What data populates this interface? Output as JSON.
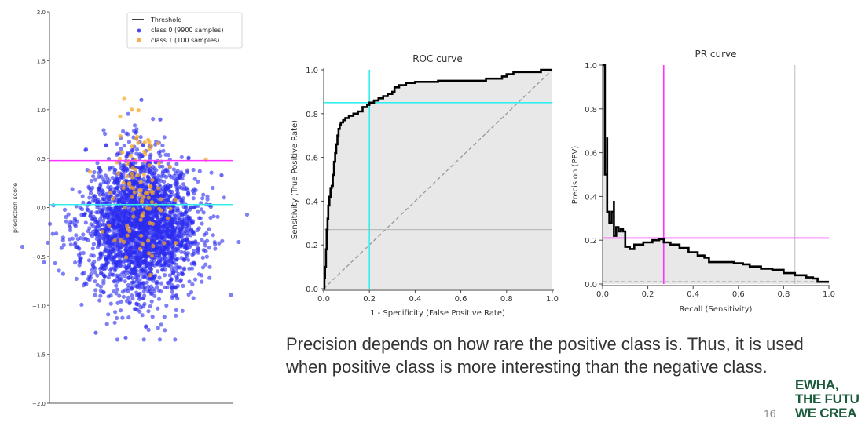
{
  "slide": {
    "caption_lines": [
      "Precision depends on how rare the positive class is. Thus, it is used",
      "when positive class is more interesting than the negative class."
    ],
    "logo_lines": [
      "EWHA,",
      "THE FUTU",
      "WE CREA"
    ],
    "page_number": "16",
    "colors": {
      "brand_green": "#1b5a3a"
    }
  },
  "chart_data": [
    {
      "id": "scatter",
      "type": "scatter",
      "title": "",
      "xlabel": "",
      "ylabel": "prediction score",
      "ylim": [
        -2.0,
        2.0
      ],
      "yticks": [
        "2.0",
        "1.5",
        "1.0",
        "0.5",
        "0.0",
        "-0.5",
        "-1.0",
        "-1.5",
        "-2.0"
      ],
      "ytick_values": [
        2.0,
        1.5,
        1.0,
        0.5,
        0.0,
        -0.5,
        -1.0,
        -1.5,
        -2.0
      ],
      "legend": {
        "placement": "top-right",
        "entries": [
          {
            "label": "Threshold",
            "kind": "line",
            "color": "#000000"
          },
          {
            "label": "class 0 (9900 samples)",
            "kind": "marker",
            "color": "#3333ee"
          },
          {
            "label": "class 1 (100 samples)",
            "kind": "marker",
            "color": "#f5a623"
          }
        ]
      },
      "series": [
        {
          "name": "class 0",
          "samples": 9900,
          "mean": -0.2,
          "std": 0.35,
          "color": "#2b2bf0"
        },
        {
          "name": "class 1",
          "samples": 100,
          "mean": 0.15,
          "std": 0.35,
          "color": "#f5a623"
        }
      ],
      "threshold_lines": [
        {
          "y": 0.48,
          "color": "#ff33ff"
        },
        {
          "y": 0.03,
          "color": "#33eeee"
        }
      ],
      "highlighted_outliers": [
        {
          "class": "class 1",
          "y": 1.11
        },
        {
          "class": "class 0",
          "y": 1.1
        },
        {
          "class": "class 1",
          "y": 0.93
        },
        {
          "class": "class 0",
          "y": 0.9
        },
        {
          "class": "class 1",
          "y": 0.49
        },
        {
          "class": "class 0",
          "y": 0.33
        },
        {
          "class": "class 0",
          "y": -1.28
        },
        {
          "class": "class 0",
          "y": -1.33
        }
      ]
    },
    {
      "id": "roc",
      "type": "line",
      "title": "ROC curve",
      "xlabel": "1 - Specificity (False Positive Rate)",
      "ylabel": "Sensitivity (True Positive Rate)",
      "xlim": [
        0.0,
        1.0
      ],
      "ylim": [
        0.0,
        1.0
      ],
      "xticks": [
        "0.0",
        "0.2",
        "0.4",
        "0.6",
        "0.8",
        "1.0"
      ],
      "yticks": [
        "0.0",
        "0.2",
        "0.4",
        "0.6",
        "0.8",
        "1.0"
      ],
      "tick_values": [
        0.0,
        0.2,
        0.4,
        0.6,
        0.8,
        1.0
      ],
      "series": [
        {
          "name": "ROC",
          "color": "#000000",
          "x": [
            0.0,
            0.003,
            0.006,
            0.01,
            0.013,
            0.017,
            0.02,
            0.025,
            0.03,
            0.035,
            0.04,
            0.045,
            0.05,
            0.055,
            0.06,
            0.065,
            0.07,
            0.075,
            0.085,
            0.095,
            0.11,
            0.13,
            0.15,
            0.17,
            0.19,
            0.2,
            0.22,
            0.24,
            0.26,
            0.28,
            0.3,
            0.31,
            0.33,
            0.36,
            0.4,
            0.5,
            0.6,
            0.7,
            0.71,
            0.78,
            0.8,
            0.83,
            0.9,
            0.95,
            1.0
          ],
          "y": [
            0.0,
            0.05,
            0.1,
            0.18,
            0.27,
            0.32,
            0.38,
            0.42,
            0.46,
            0.47,
            0.52,
            0.58,
            0.62,
            0.66,
            0.7,
            0.73,
            0.75,
            0.76,
            0.77,
            0.78,
            0.79,
            0.8,
            0.81,
            0.83,
            0.84,
            0.85,
            0.86,
            0.87,
            0.88,
            0.89,
            0.9,
            0.92,
            0.93,
            0.94,
            0.945,
            0.95,
            0.95,
            0.95,
            0.96,
            0.97,
            0.98,
            0.99,
            0.99,
            1.0,
            1.0
          ]
        },
        {
          "name": "chance",
          "style": "dashed",
          "color": "#999999",
          "x": [
            0.0,
            1.0
          ],
          "y": [
            0.0,
            1.0
          ]
        }
      ],
      "reference_lines": [
        {
          "orientation": "vertical",
          "value": 0.2,
          "color": "#33eeee"
        },
        {
          "orientation": "horizontal",
          "value": 0.85,
          "color": "#33eeee"
        },
        {
          "orientation": "horizontal",
          "value": 0.27,
          "color": "#aaaaaa"
        }
      ],
      "fill_color": "#e8e8e8"
    },
    {
      "id": "pr",
      "type": "line",
      "title": "PR curve",
      "xlabel": "Recall (Sensitivity)",
      "ylabel": "Precision (PPV)",
      "xlim": [
        0.0,
        1.0
      ],
      "ylim": [
        0.0,
        1.0
      ],
      "xticks": [
        "0.0",
        "0.2",
        "0.4",
        "0.6",
        "0.8",
        "1.0"
      ],
      "yticks": [
        "0.0",
        "0.2",
        "0.4",
        "0.6",
        "0.8",
        "1.0"
      ],
      "tick_values": [
        0.0,
        0.2,
        0.4,
        0.6,
        0.8,
        1.0
      ],
      "series": [
        {
          "name": "PR",
          "color": "#000000",
          "x": [
            0.0,
            0.01,
            0.01,
            0.02,
            0.02,
            0.03,
            0.03,
            0.04,
            0.05,
            0.05,
            0.06,
            0.07,
            0.08,
            0.09,
            0.1,
            0.1,
            0.12,
            0.14,
            0.18,
            0.22,
            0.25,
            0.27,
            0.27,
            0.3,
            0.34,
            0.38,
            0.42,
            0.45,
            0.47,
            0.52,
            0.58,
            0.62,
            0.65,
            0.7,
            0.75,
            0.8,
            0.85,
            0.9,
            0.93,
            0.95,
            1.0
          ],
          "y": [
            1.0,
            1.0,
            0.5,
            0.67,
            0.33,
            0.3,
            0.28,
            0.33,
            0.38,
            0.22,
            0.26,
            0.24,
            0.25,
            0.24,
            0.22,
            0.17,
            0.16,
            0.18,
            0.19,
            0.2,
            0.205,
            0.21,
            0.19,
            0.18,
            0.165,
            0.145,
            0.13,
            0.12,
            0.1,
            0.1,
            0.095,
            0.09,
            0.08,
            0.07,
            0.065,
            0.05,
            0.04,
            0.03,
            0.025,
            0.01,
            0.01
          ]
        },
        {
          "name": "baseline",
          "style": "dashed",
          "color": "#999999",
          "x": [
            0.0,
            1.0
          ],
          "y": [
            0.01,
            0.01
          ]
        }
      ],
      "reference_lines": [
        {
          "orientation": "vertical",
          "value": 0.27,
          "color": "#ff33ff"
        },
        {
          "orientation": "horizontal",
          "value": 0.21,
          "color": "#ff33ff"
        },
        {
          "orientation": "vertical",
          "value": 0.85,
          "color": "#aaaaaa"
        }
      ],
      "fill_color": "#e8e8e8"
    }
  ]
}
